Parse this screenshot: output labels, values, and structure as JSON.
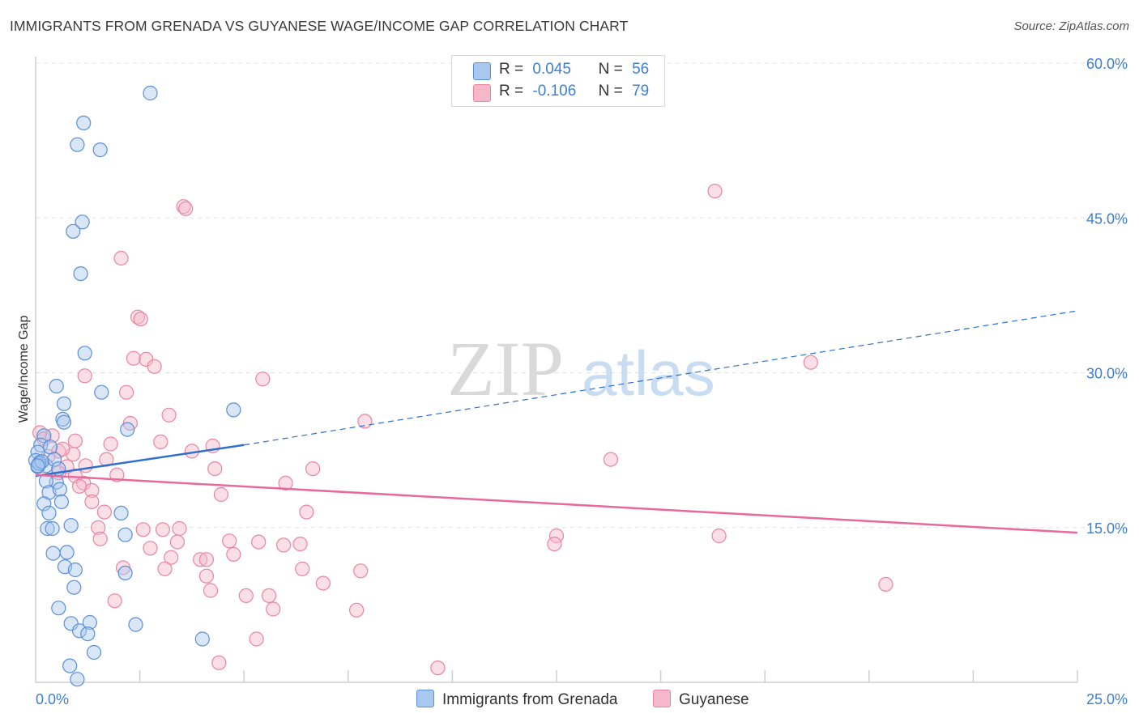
{
  "title": "IMMIGRANTS FROM GRENADA VS GUYANESE WAGE/INCOME GAP CORRELATION CHART",
  "source": "Source: ZipAtlas.com",
  "watermark": {
    "zip": "ZIP",
    "atlas": "atlas"
  },
  "legend_top": {
    "rows": [
      {
        "r_label": "R =",
        "r_value": "0.045",
        "n_label": "N =",
        "n_value": "56"
      },
      {
        "r_label": "R =",
        "r_value": "-0.106",
        "n_label": "N =",
        "n_value": "79"
      }
    ]
  },
  "legend_bottom": {
    "series1": "Immigrants from Grenada",
    "series2": "Guyanese"
  },
  "colors": {
    "blue_fill": "#a9c8f0",
    "blue_stroke": "#5b8fd6",
    "blue_line": "#2e6fcf",
    "pink_fill": "#f5b8ca",
    "pink_stroke": "#e9859f",
    "pink_line": "#e8699a",
    "tick_text": "#3f7fd0",
    "grid": "#e3e3e3"
  },
  "chart_data": {
    "type": "scatter",
    "title": "IMMIGRANTS FROM GRENADA VS GUYANESE WAGE/INCOME GAP CORRELATION CHART",
    "xlabel": "",
    "ylabel": "Wage/Income Gap",
    "xlim": [
      0,
      25
    ],
    "ylim": [
      0,
      60
    ],
    "x_tick_labels": [
      "0.0%",
      "25.0%"
    ],
    "y_ticks": [
      15,
      30,
      45,
      60
    ],
    "y_tick_labels": [
      "15.0%",
      "30.0%",
      "45.0%",
      "60.0%"
    ],
    "series": [
      {
        "name": "Immigrants from Grenada",
        "R": 0.045,
        "N": 56,
        "trend": {
          "x": [
            0,
            5.0
          ],
          "y": [
            20.0,
            23.0
          ],
          "dashed_to": [
            25.0,
            36.0
          ]
        },
        "points": [
          [
            2.75,
            57.1
          ],
          [
            1.15,
            54.2
          ],
          [
            1.0,
            52.1
          ],
          [
            1.55,
            51.6
          ],
          [
            1.12,
            44.6
          ],
          [
            0.9,
            43.7
          ],
          [
            1.08,
            39.6
          ],
          [
            1.18,
            31.9
          ],
          [
            0.5,
            28.7
          ],
          [
            1.58,
            28.1
          ],
          [
            0.68,
            27.0
          ],
          [
            4.75,
            26.4
          ],
          [
            0.65,
            25.5
          ],
          [
            0.68,
            25.2
          ],
          [
            2.2,
            24.5
          ],
          [
            0.2,
            23.9
          ],
          [
            0.12,
            23.0
          ],
          [
            0.35,
            22.8
          ],
          [
            0.05,
            22.3
          ],
          [
            0.0,
            21.5
          ],
          [
            0.1,
            21.3
          ],
          [
            0.25,
            21.0
          ],
          [
            0.45,
            21.6
          ],
          [
            0.55,
            20.7
          ],
          [
            0.05,
            20.9
          ],
          [
            0.5,
            19.4
          ],
          [
            0.25,
            19.5
          ],
          [
            0.32,
            18.4
          ],
          [
            0.58,
            18.7
          ],
          [
            0.2,
            17.3
          ],
          [
            0.62,
            17.5
          ],
          [
            0.32,
            16.4
          ],
          [
            2.05,
            16.4
          ],
          [
            0.28,
            14.9
          ],
          [
            0.4,
            14.9
          ],
          [
            0.85,
            15.2
          ],
          [
            2.15,
            14.3
          ],
          [
            0.42,
            12.5
          ],
          [
            0.75,
            12.6
          ],
          [
            0.7,
            11.2
          ],
          [
            0.95,
            10.9
          ],
          [
            2.15,
            10.6
          ],
          [
            0.92,
            9.2
          ],
          [
            0.55,
            7.2
          ],
          [
            0.85,
            5.7
          ],
          [
            1.05,
            5.0
          ],
          [
            1.3,
            5.8
          ],
          [
            1.25,
            4.7
          ],
          [
            2.4,
            5.6
          ],
          [
            4.0,
            4.2
          ],
          [
            1.4,
            2.9
          ],
          [
            0.82,
            1.6
          ],
          [
            1.0,
            0.3
          ],
          [
            0.08,
            21.2
          ],
          [
            0.15,
            21.4
          ],
          [
            0.05,
            21.0
          ]
        ]
      },
      {
        "name": "Guyanese",
        "R": -0.106,
        "N": 79,
        "trend": {
          "x": [
            0,
            25.0
          ],
          "y": [
            20.1,
            14.5
          ]
        },
        "points": [
          [
            3.55,
            46.1
          ],
          [
            3.6,
            45.9
          ],
          [
            16.3,
            47.6
          ],
          [
            2.05,
            41.1
          ],
          [
            2.45,
            35.4
          ],
          [
            2.52,
            35.2
          ],
          [
            2.35,
            31.4
          ],
          [
            2.65,
            31.3
          ],
          [
            2.85,
            30.6
          ],
          [
            1.18,
            29.7
          ],
          [
            5.45,
            29.4
          ],
          [
            18.6,
            31.0
          ],
          [
            2.18,
            28.1
          ],
          [
            3.2,
            25.9
          ],
          [
            7.9,
            25.3
          ],
          [
            2.27,
            25.1
          ],
          [
            0.1,
            24.2
          ],
          [
            0.2,
            23.6
          ],
          [
            0.4,
            23.9
          ],
          [
            0.95,
            23.4
          ],
          [
            1.8,
            23.1
          ],
          [
            3.0,
            23.3
          ],
          [
            4.25,
            22.9
          ],
          [
            3.75,
            22.4
          ],
          [
            0.55,
            22.4
          ],
          [
            0.9,
            22.1
          ],
          [
            1.7,
            21.6
          ],
          [
            13.8,
            21.6
          ],
          [
            0.75,
            20.9
          ],
          [
            4.3,
            20.7
          ],
          [
            6.65,
            20.7
          ],
          [
            0.55,
            20.3
          ],
          [
            1.95,
            20.1
          ],
          [
            0.95,
            20.0
          ],
          [
            1.15,
            19.3
          ],
          [
            6.0,
            19.3
          ],
          [
            1.05,
            19.0
          ],
          [
            1.35,
            18.6
          ],
          [
            4.45,
            18.2
          ],
          [
            1.35,
            17.5
          ],
          [
            1.65,
            16.5
          ],
          [
            6.5,
            16.5
          ],
          [
            1.5,
            15.0
          ],
          [
            2.58,
            14.8
          ],
          [
            3.05,
            14.8
          ],
          [
            3.45,
            14.9
          ],
          [
            1.55,
            13.9
          ],
          [
            3.4,
            13.6
          ],
          [
            4.65,
            13.7
          ],
          [
            5.35,
            13.6
          ],
          [
            5.95,
            13.3
          ],
          [
            6.35,
            13.4
          ],
          [
            12.5,
            14.2
          ],
          [
            16.4,
            14.2
          ],
          [
            12.45,
            13.4
          ],
          [
            2.75,
            13.0
          ],
          [
            4.75,
            12.4
          ],
          [
            3.25,
            12.1
          ],
          [
            3.95,
            11.9
          ],
          [
            4.1,
            11.9
          ],
          [
            2.1,
            11.1
          ],
          [
            3.1,
            11.0
          ],
          [
            6.4,
            11.0
          ],
          [
            7.8,
            10.8
          ],
          [
            4.1,
            10.3
          ],
          [
            6.9,
            9.6
          ],
          [
            20.4,
            9.5
          ],
          [
            4.2,
            8.9
          ],
          [
            5.05,
            8.4
          ],
          [
            5.6,
            8.4
          ],
          [
            1.9,
            7.9
          ],
          [
            5.7,
            7.1
          ],
          [
            7.7,
            7.0
          ],
          [
            5.3,
            4.2
          ],
          [
            4.4,
            1.9
          ],
          [
            9.65,
            1.4
          ],
          [
            0.3,
            21.9
          ],
          [
            0.65,
            22.6
          ],
          [
            1.2,
            21.0
          ]
        ]
      }
    ]
  }
}
